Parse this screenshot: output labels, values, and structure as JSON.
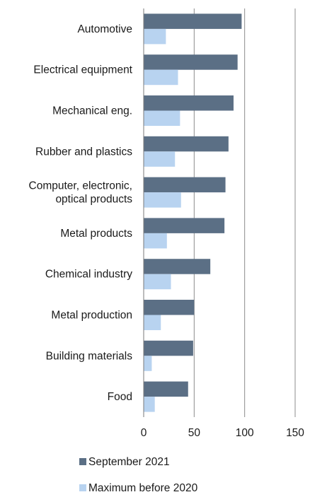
{
  "chart_data": {
    "type": "bar",
    "orientation": "horizontal",
    "categories": [
      "Automotive",
      "Electrical equipment",
      "Mechanical eng.",
      "Rubber and plastics",
      "Computer, electronic, optical products",
      "Metal products",
      "Chemical industry",
      "Metal production",
      "Building materials",
      "Food"
    ],
    "category_lines": [
      [
        "Automotive"
      ],
      [
        "Electrical equipment"
      ],
      [
        "Mechanical eng."
      ],
      [
        "Rubber and plastics"
      ],
      [
        "Computer, electronic,",
        "optical products"
      ],
      [
        "Metal products"
      ],
      [
        "Chemical industry"
      ],
      [
        "Metal production"
      ],
      [
        "Building materials"
      ],
      [
        "Food"
      ]
    ],
    "series": [
      {
        "name": "September 2021",
        "color": "#5b6f85",
        "values": [
          97,
          93,
          89,
          84,
          81,
          80,
          66,
          50,
          49,
          44
        ]
      },
      {
        "name": "Maximum before 2020",
        "color": "#b8d3f0",
        "values": [
          22,
          34,
          36,
          31,
          37,
          23,
          27,
          17,
          8,
          11
        ]
      }
    ],
    "xlim": [
      0,
      150
    ],
    "xticks": [
      0,
      50,
      100,
      150
    ],
    "grid": true,
    "legend_position": "bottom",
    "title": "",
    "xlabel": "",
    "ylabel": ""
  }
}
